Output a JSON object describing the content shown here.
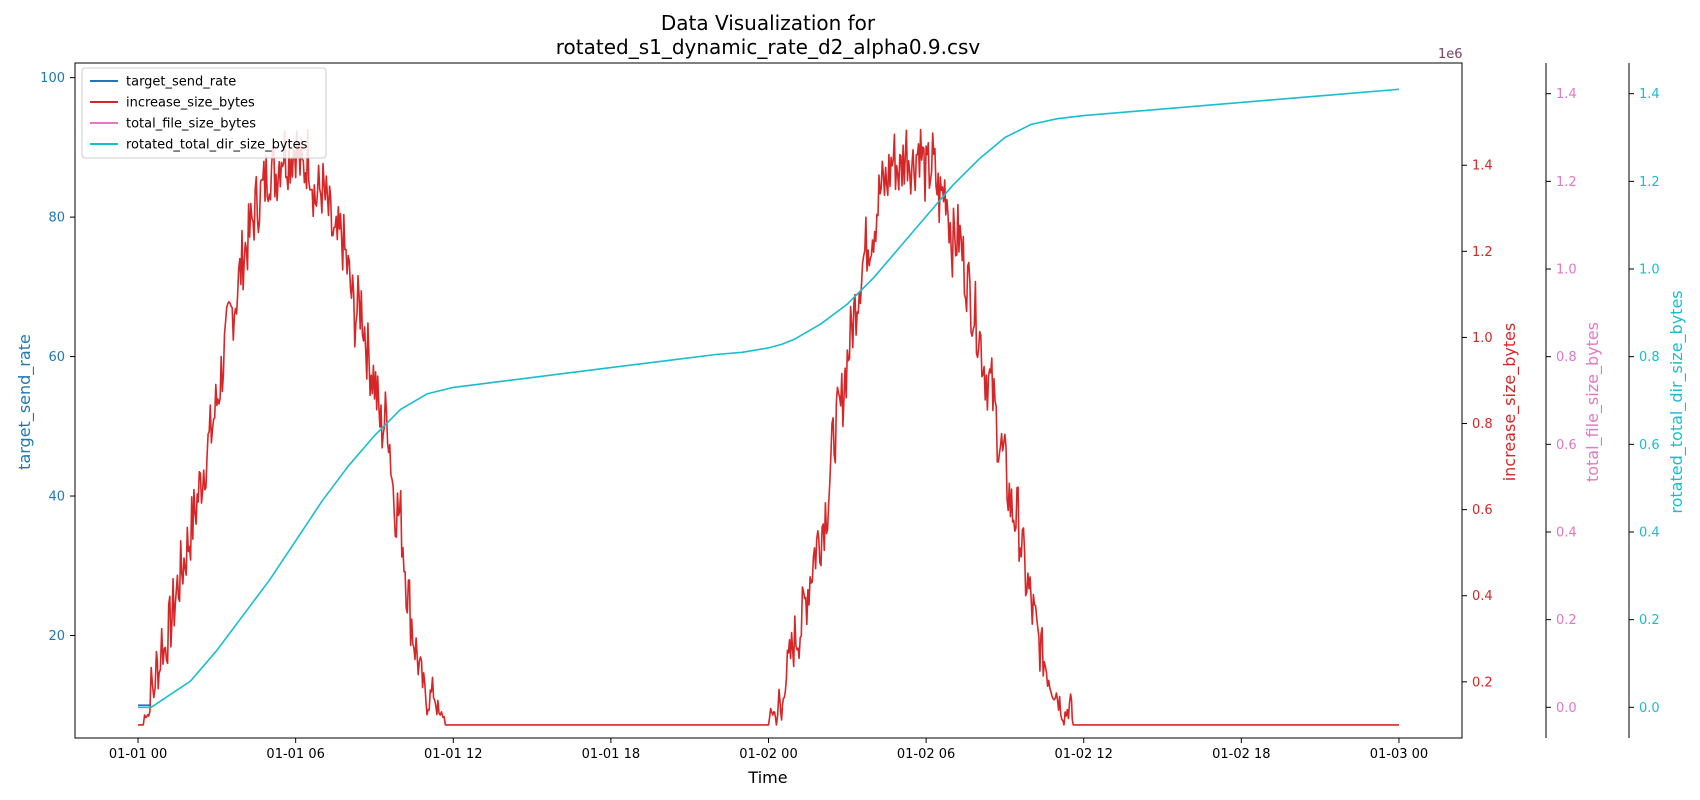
{
  "chart_data": {
    "type": "line",
    "title": "Data Visualization for",
    "subtitle": "rotated_s1_dynamic_rate_d2_alpha0.9.csv",
    "xlabel": "Time",
    "x_ticks": [
      "01-01 00",
      "01-01 06",
      "01-01 12",
      "01-01 18",
      "01-02 00",
      "01-02 06",
      "01-02 12",
      "01-02 18",
      "01-03 00"
    ],
    "x_range_hours": [
      -2.4,
      50.4
    ],
    "legend_placement": "top-left",
    "grid": false,
    "axes": {
      "target_send_rate": {
        "label": "target_send_rate",
        "side": "left",
        "color": "#1f77b4",
        "range": [
          5.3,
          102.1
        ],
        "ticks": [
          "20",
          "40",
          "60",
          "80",
          "100"
        ],
        "offset_text": "1e6"
      },
      "increase_size_bytes": {
        "label": "increase_size_bytes",
        "side": "right",
        "color": "#d62728",
        "range": [
          0.0695,
          1.6375
        ],
        "ticks": [
          "0.2",
          "0.4",
          "0.6",
          "0.8",
          "1.0",
          "1.2",
          "1.4"
        ],
        "offset_text": "1e6"
      },
      "total_file_size_bytes": {
        "label": "total_file_size_bytes",
        "side": "right",
        "color": "#e377c2",
        "range": [
          -0.07,
          1.47
        ],
        "ticks": [
          "0.0",
          "0.2",
          "0.4",
          "0.6",
          "0.8",
          "1.0",
          "1.2",
          "1.4"
        ]
      },
      "rotated_total_dir_size_bytes": {
        "label": "rotated_total_dir_size_bytes",
        "side": "right",
        "color": "#17becf",
        "range": [
          -0.07,
          1.47
        ],
        "ticks": [
          "0.0",
          "0.2",
          "0.4",
          "0.6",
          "0.8",
          "1.0",
          "1.2",
          "1.4"
        ]
      }
    },
    "series": [
      {
        "name": "target_send_rate",
        "axis": "target_send_rate",
        "color": "#1f77b4",
        "x_hours": [
          0,
          0.5
        ],
        "values": [
          10,
          10
        ]
      },
      {
        "name": "increase_size_bytes",
        "axis": "increase_size_bytes",
        "color": "#d62728",
        "note_values_in_1e6": true,
        "x_hours": [
          0,
          0.2,
          0.3,
          0.4,
          0.5,
          0.6,
          0.7,
          0.8,
          0.9,
          1.0,
          1.25,
          1.5,
          1.75,
          2.0,
          2.25,
          2.5,
          2.75,
          3.0,
          3.25,
          3.5,
          3.75,
          4.0,
          4.25,
          4.5,
          4.75,
          5.0,
          5.25,
          5.5,
          5.75,
          6.0,
          6.25,
          6.5,
          6.75,
          7.0,
          7.25,
          7.5,
          7.75,
          8.0,
          8.25,
          8.5,
          8.75,
          9.0,
          9.25,
          9.5,
          9.75,
          10.0,
          10.25,
          10.5,
          10.75,
          11.0,
          11.25,
          11.5,
          11.6,
          11.7,
          24.0,
          24.2,
          24.3,
          24.4,
          24.5,
          24.6,
          24.8,
          25.0,
          25.25,
          25.5,
          25.75,
          26.0,
          26.25,
          26.5,
          26.75,
          27.0,
          27.25,
          27.5,
          27.75,
          28.0,
          28.25,
          28.5,
          28.75,
          29.0,
          29.25,
          29.5,
          29.75,
          30.0,
          30.25,
          30.5,
          30.75,
          31.0,
          31.25,
          31.5,
          31.75,
          32.0,
          32.25,
          32.5,
          32.75,
          33.0,
          33.25,
          33.5,
          33.75,
          34.0,
          34.25,
          34.5,
          34.75,
          35.0,
          35.25,
          35.5,
          35.6,
          35.7,
          48.0
        ],
        "values": [
          0.1,
          0.1,
          0.14,
          0.12,
          0.2,
          0.17,
          0.24,
          0.22,
          0.3,
          0.27,
          0.34,
          0.42,
          0.48,
          0.55,
          0.62,
          0.7,
          0.77,
          0.85,
          0.95,
          1.04,
          1.1,
          1.19,
          1.24,
          1.31,
          1.34,
          1.4,
          1.38,
          1.44,
          1.42,
          1.45,
          1.38,
          1.43,
          1.32,
          1.35,
          1.29,
          1.21,
          1.24,
          1.15,
          1.05,
          1.08,
          0.96,
          0.9,
          0.79,
          0.82,
          0.62,
          0.58,
          0.42,
          0.3,
          0.22,
          0.15,
          0.18,
          0.11,
          0.13,
          0.1,
          0.1,
          0.14,
          0.1,
          0.16,
          0.11,
          0.2,
          0.25,
          0.3,
          0.33,
          0.42,
          0.5,
          0.55,
          0.62,
          0.78,
          0.83,
          0.95,
          1.05,
          1.15,
          1.22,
          1.26,
          1.34,
          1.36,
          1.42,
          1.38,
          1.44,
          1.4,
          1.45,
          1.37,
          1.41,
          1.32,
          1.35,
          1.22,
          1.24,
          1.15,
          1.08,
          1.02,
          0.92,
          0.88,
          0.77,
          0.7,
          0.6,
          0.58,
          0.46,
          0.38,
          0.3,
          0.25,
          0.2,
          0.17,
          0.12,
          0.15,
          0.1,
          0.1,
          0.1
        ]
      },
      {
        "name": "total_file_size_bytes",
        "axis": "total_file_size_bytes",
        "color": "#e377c2",
        "x_hours": [],
        "values": []
      },
      {
        "name": "rotated_total_dir_size_bytes",
        "axis": "rotated_total_dir_size_bytes",
        "color": "#17becf",
        "note_values_in_1e6": true,
        "x_hours": [
          0,
          0.5,
          1,
          2,
          3,
          4,
          5,
          6,
          7,
          8,
          9,
          10,
          11,
          12,
          14,
          16,
          18,
          20,
          22,
          23,
          24,
          24.5,
          25,
          26,
          27,
          28,
          29,
          30,
          31,
          32,
          33,
          34,
          35,
          36,
          38,
          40,
          42,
          44,
          46,
          48
        ],
        "values": [
          0.0,
          0.0,
          0.02,
          0.06,
          0.13,
          0.21,
          0.29,
          0.38,
          0.47,
          0.55,
          0.62,
          0.68,
          0.715,
          0.73,
          0.745,
          0.76,
          0.775,
          0.79,
          0.805,
          0.81,
          0.82,
          0.828,
          0.84,
          0.875,
          0.92,
          0.98,
          1.05,
          1.12,
          1.19,
          1.25,
          1.3,
          1.33,
          1.343,
          1.35,
          1.36,
          1.37,
          1.38,
          1.39,
          1.4,
          1.41
        ]
      }
    ]
  }
}
